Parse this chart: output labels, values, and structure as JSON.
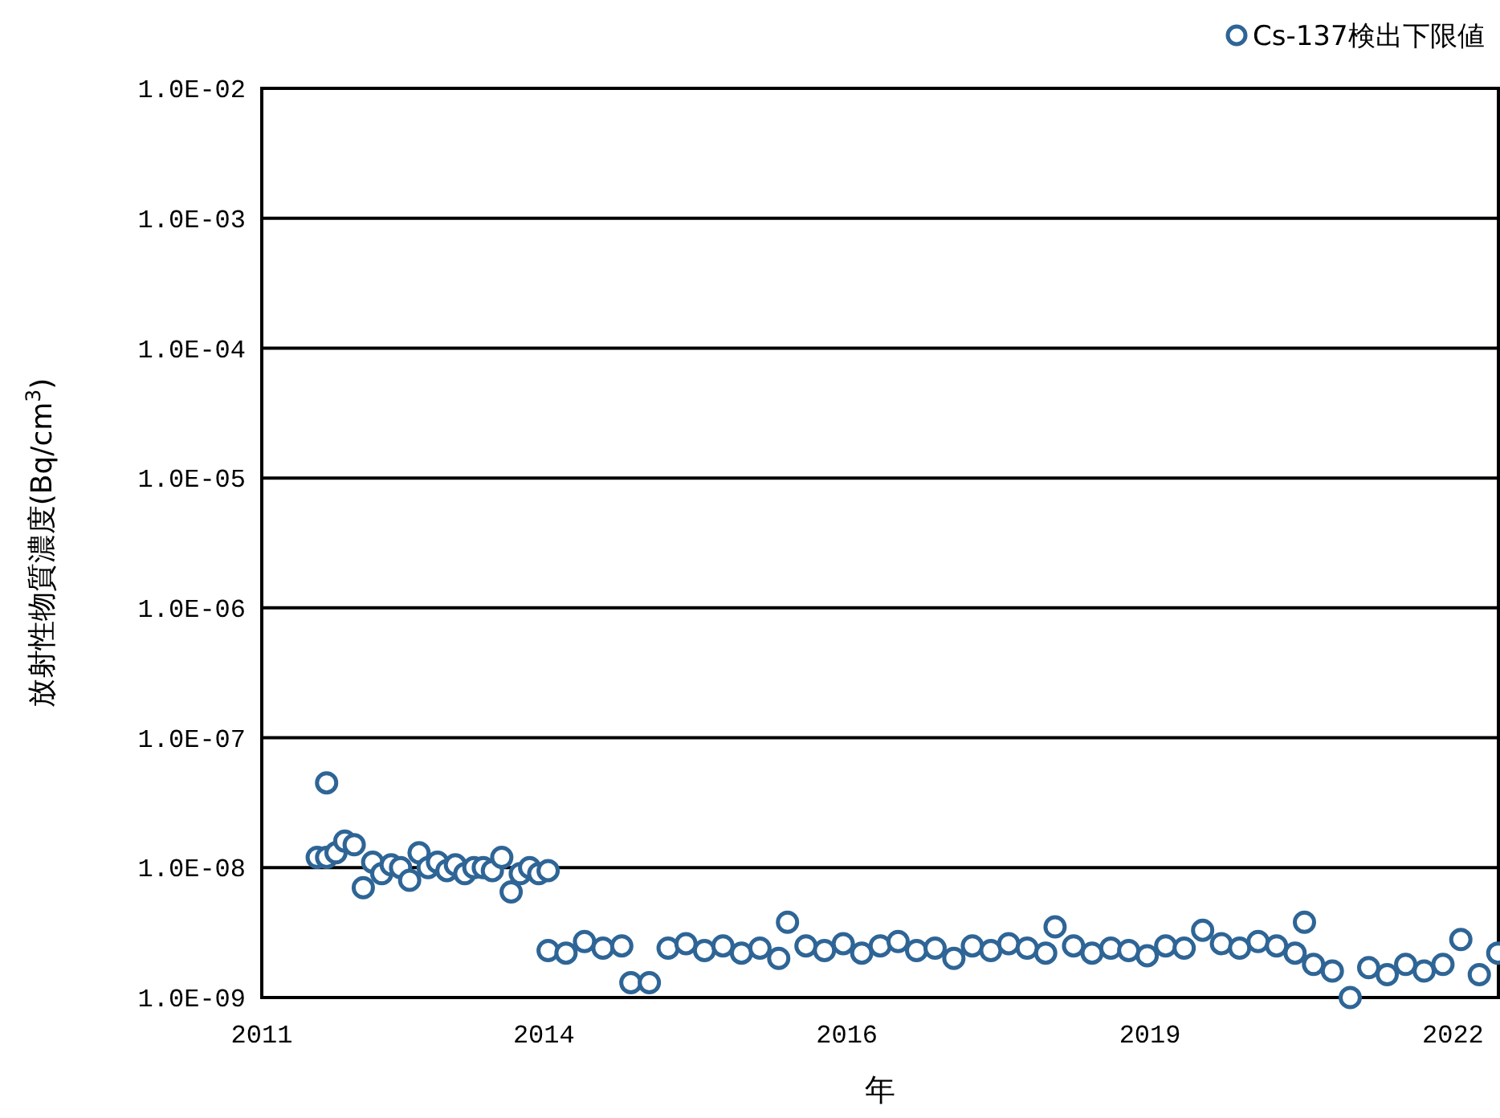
{
  "chart_data": {
    "type": "scatter",
    "xlabel": "年",
    "ylabel": "放射性物質濃度(Bq/cm$^{3}$)",
    "log": "y",
    "grid": "y",
    "legend": "top right",
    "marker": "circle",
    "xlim": [
      "2011-06-15",
      "2022-08-17"
    ],
    "xticks": [
      {
        "value": "2011-06-15",
        "label": "2011"
      },
      {
        "value": "2014-01-01",
        "label": "2014"
      },
      {
        "value": "2016-09-27",
        "label": "2016"
      },
      {
        "value": "2019-06-24",
        "label": "2019"
      },
      {
        "value": "2022-03-20",
        "label": "2022"
      }
    ],
    "ylim": [
      1e-09,
      0.01
    ],
    "yticks": [
      {
        "value": 1e-09,
        "label": "1.0E-09"
      },
      {
        "value": 1e-08,
        "label": "1.0E-08"
      },
      {
        "value": 1e-07,
        "label": "1.0E-07"
      },
      {
        "value": 1e-06,
        "label": "1.0E-06"
      },
      {
        "value": 1e-05,
        "label": "1.0E-05"
      },
      {
        "value": 0.0001,
        "label": "1.0E-04"
      },
      {
        "value": 0.001,
        "label": "1.0E-03"
      },
      {
        "value": 0.01,
        "label": "1.0E-02"
      }
    ],
    "series": [
      {
        "name": "Cs-137検出下限値",
        "color": "#2e6596",
        "x": [
          "2011-12",
          "2012-01",
          "2012-01",
          "2012-02",
          "2012-03",
          "2012-04",
          "2012-05",
          "2012-06",
          "2012-07",
          "2012-08",
          "2012-09",
          "2012-10",
          "2012-11",
          "2012-12",
          "2013-01",
          "2013-02",
          "2013-03",
          "2013-04",
          "2013-05",
          "2013-06",
          "2013-07",
          "2013-08",
          "2013-09",
          "2013-10",
          "2013-11",
          "2013-12",
          "2014-01",
          "2014-01",
          "2014-03",
          "2014-05",
          "2014-07",
          "2014-09",
          "2014-10",
          "2014-12",
          "2015-02",
          "2015-04",
          "2015-06",
          "2015-08",
          "2015-10",
          "2015-12",
          "2016-02",
          "2016-03",
          "2016-05",
          "2016-07",
          "2016-09",
          "2016-11",
          "2017-01",
          "2017-03",
          "2017-05",
          "2017-07",
          "2017-09",
          "2017-11",
          "2018-01",
          "2018-03",
          "2018-05",
          "2018-07",
          "2018-08",
          "2018-10",
          "2018-12",
          "2019-02",
          "2019-04",
          "2019-06",
          "2019-08",
          "2019-10",
          "2019-12",
          "2020-02",
          "2020-04",
          "2020-06",
          "2020-08",
          "2020-10",
          "2020-11",
          "2020-12",
          "2021-02",
          "2021-04",
          "2021-06",
          "2021-08",
          "2021-10",
          "2021-12",
          "2022-02",
          "2022-04",
          "2022-06",
          "2022-08"
        ],
        "values": [
          1.2e-08,
          4.5e-08,
          1.2e-08,
          1.3e-08,
          1.6e-08,
          1.5e-08,
          7e-09,
          1.1e-08,
          9e-09,
          1.05e-08,
          1e-08,
          8e-09,
          1.3e-08,
          1e-08,
          1.1e-08,
          9.5e-09,
          1.05e-08,
          9e-09,
          1e-08,
          1e-08,
          9.5e-09,
          1.2e-08,
          6.5e-09,
          9e-09,
          1e-08,
          9e-09,
          9.5e-09,
          2.3e-09,
          2.2e-09,
          2.7e-09,
          2.4e-09,
          2.5e-09,
          1.3e-09,
          1.3e-09,
          2.4e-09,
          2.6e-09,
          2.3e-09,
          2.5e-09,
          2.2e-09,
          2.4e-09,
          2e-09,
          3.8e-09,
          2.5e-09,
          2.3e-09,
          2.6e-09,
          2.2e-09,
          2.5e-09,
          2.7e-09,
          2.3e-09,
          2.4e-09,
          2e-09,
          2.5e-09,
          2.3e-09,
          2.6e-09,
          2.4e-09,
          2.2e-09,
          3.5e-09,
          2.5e-09,
          2.2e-09,
          2.4e-09,
          2.3e-09,
          2.1e-09,
          2.5e-09,
          2.4e-09,
          3.3e-09,
          2.6e-09,
          2.4e-09,
          2.7e-09,
          2.5e-09,
          2.2e-09,
          3.8e-09,
          1.8e-09,
          1.6e-09,
          1e-09,
          1.7e-09,
          1.5e-09,
          1.8e-09,
          1.6e-09,
          1.8e-09,
          2.8e-09,
          1.5e-09,
          2.2e-09
        ]
      }
    ]
  }
}
